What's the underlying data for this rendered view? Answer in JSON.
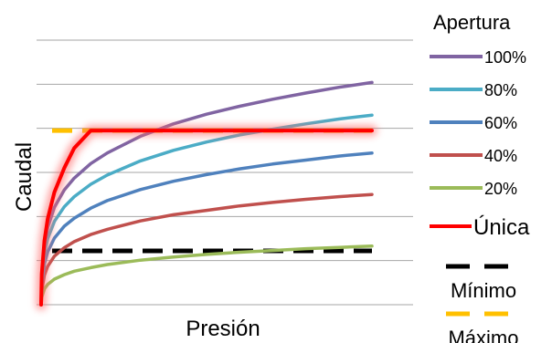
{
  "chart_data": {
    "type": "line",
    "title": "",
    "xlabel": "Presión",
    "ylabel": "Caudal",
    "xlim": [
      0,
      100
    ],
    "ylim": [
      0,
      6
    ],
    "grid": true,
    "legend_title": "Apertura",
    "legend_position": "right",
    "x": [
      0,
      0.2,
      1,
      2,
      4,
      7,
      10,
      15,
      20,
      30,
      40,
      50,
      60,
      70,
      80,
      90,
      100
    ],
    "series": [
      {
        "name": "100%",
        "color": "#8064A2",
        "kind": "line",
        "values": [
          0.0,
          0.64,
          1.35,
          1.75,
          2.21,
          2.6,
          2.87,
          3.2,
          3.44,
          3.82,
          4.1,
          4.32,
          4.5,
          4.66,
          4.8,
          4.93,
          5.04
        ]
      },
      {
        "name": "80%",
        "color": "#4BACC6",
        "kind": "line",
        "values": [
          0.0,
          0.55,
          1.16,
          1.5,
          1.89,
          2.22,
          2.45,
          2.73,
          2.94,
          3.26,
          3.5,
          3.69,
          3.85,
          3.98,
          4.1,
          4.21,
          4.3
        ]
      },
      {
        "name": "60%",
        "color": "#4F81BD",
        "kind": "line",
        "values": [
          0.0,
          0.44,
          0.93,
          1.2,
          1.51,
          1.78,
          1.96,
          2.19,
          2.36,
          2.61,
          2.8,
          2.95,
          3.08,
          3.19,
          3.28,
          3.37,
          3.44
        ]
      },
      {
        "name": "40%",
        "color": "#C0504D",
        "kind": "line",
        "values": [
          0.0,
          0.32,
          0.67,
          0.87,
          1.1,
          1.29,
          1.43,
          1.59,
          1.71,
          1.9,
          2.04,
          2.14,
          2.24,
          2.32,
          2.39,
          2.45,
          2.5
        ]
      },
      {
        "name": "20%",
        "color": "#9BBB59",
        "kind": "line",
        "values": [
          0.0,
          0.17,
          0.36,
          0.46,
          0.58,
          0.68,
          0.76,
          0.84,
          0.91,
          1.01,
          1.08,
          1.14,
          1.19,
          1.23,
          1.27,
          1.3,
          1.33
        ]
      },
      {
        "name": "Única",
        "color": "#FF0000",
        "kind": "glow",
        "values": [
          0.0,
          0.7,
          1.45,
          1.95,
          2.55,
          3.1,
          3.55,
          3.95,
          3.95,
          3.95,
          3.95,
          3.95,
          3.95,
          3.95,
          3.95,
          3.95,
          3.95
        ]
      },
      {
        "name": "Mínimo",
        "color": "#000000",
        "kind": "dashed",
        "values": [
          1.22,
          1.22,
          1.22,
          1.22,
          1.22,
          1.22,
          1.22,
          1.22,
          1.22,
          1.22,
          1.22,
          1.22,
          1.22,
          1.22,
          1.22,
          1.22,
          1.22
        ]
      },
      {
        "name": "Máximo",
        "color": "#FFC000",
        "kind": "dashed",
        "values": [
          3.95,
          3.95,
          3.95,
          3.95,
          3.95,
          3.95,
          3.95,
          3.95,
          3.95,
          3.95,
          3.95,
          3.95,
          3.95,
          3.95,
          3.95,
          3.95,
          3.95
        ]
      }
    ]
  }
}
